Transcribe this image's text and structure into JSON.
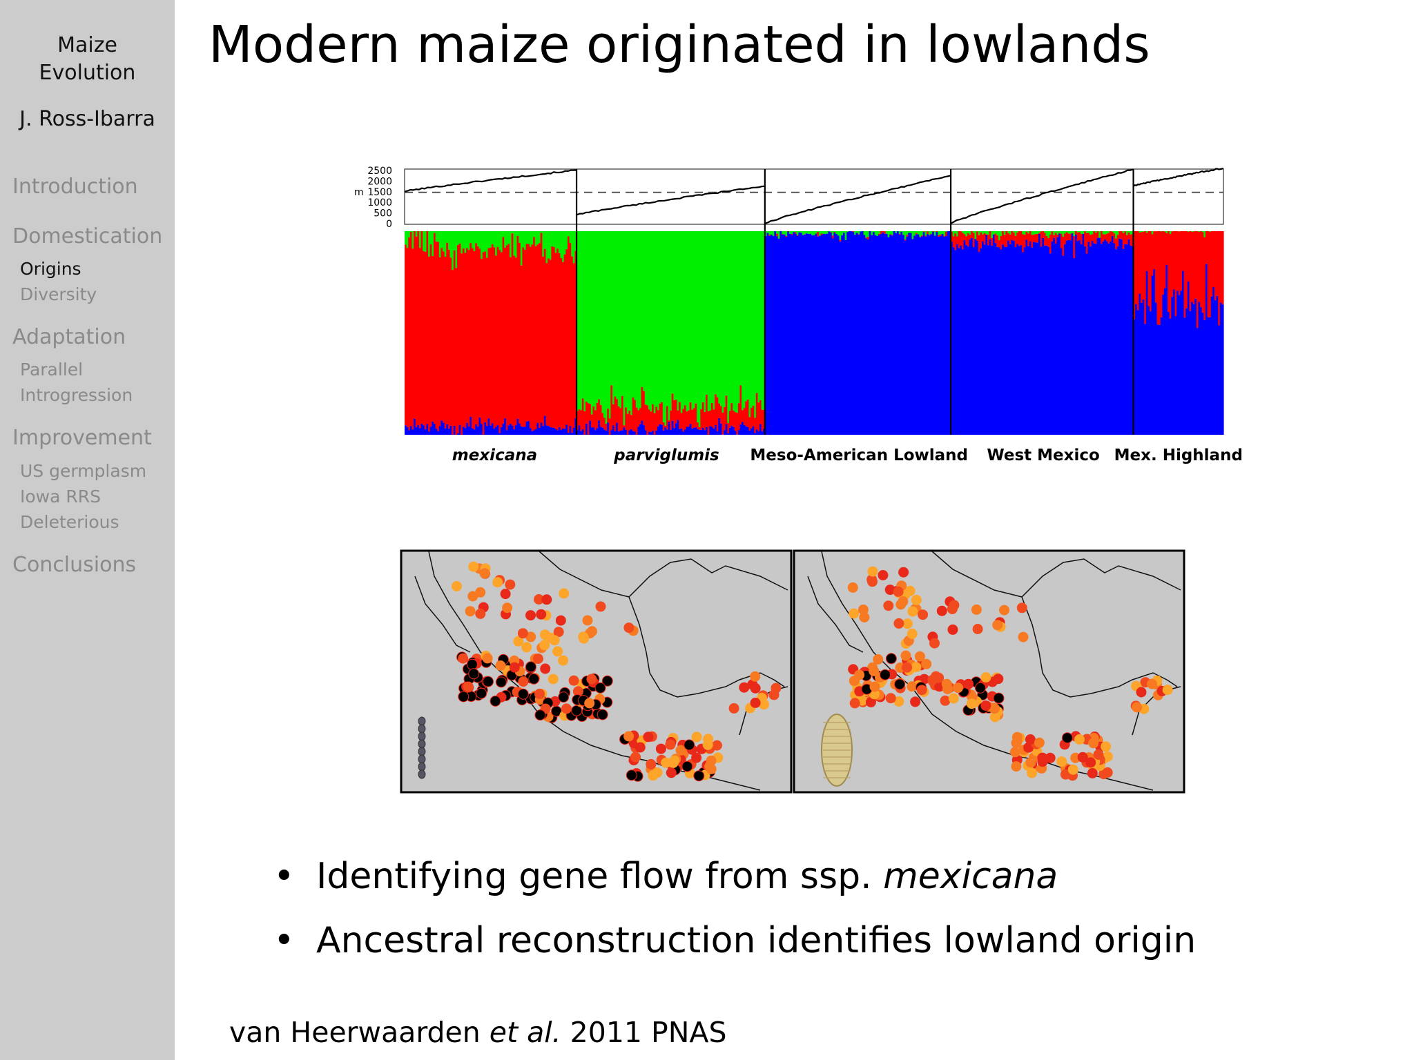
{
  "sidebar": {
    "title_line1": "Maize",
    "title_line2": "Evolution",
    "author": "J. Ross-Ibarra",
    "sections": [
      {
        "label": "Introduction"
      },
      {
        "label": "Domestication",
        "subs": [
          "Origins",
          "Diversity"
        ]
      },
      {
        "label": "Adaptation",
        "subs": [
          "Parallel",
          "Introgression"
        ]
      },
      {
        "label": "Improvement",
        "subs": [
          "US germplasm",
          "Iowa RRS",
          "Deleterious"
        ]
      },
      {
        "label": "Conclusions"
      }
    ],
    "current_subsection": "Origins"
  },
  "slide": {
    "title": "Modern maize originated in lowlands",
    "bullets": [
      {
        "text": "Identifying gene flow from ssp. ",
        "italic": "mexicana"
      },
      {
        "text": "Ancestral reconstruction identifies lowland origin"
      }
    ],
    "citation": {
      "prefix": "van Heerwaarden ",
      "italic": "et al.",
      "suffix": " 2011 PNAS"
    },
    "bullet_glyph": "•"
  },
  "chart_data": [
    {
      "type": "line",
      "ylabel": "m",
      "yticks": [
        0,
        500,
        1000,
        1500,
        2000,
        2500
      ],
      "ylim": [
        0,
        2600
      ],
      "reference_line": 1500,
      "series": [
        {
          "group": "mexicana",
          "start": 1550,
          "end": 2550
        },
        {
          "group": "parviglumis",
          "start": 450,
          "end": 1800
        },
        {
          "group": "Meso-American Lowland",
          "start": 50,
          "end": 2300
        },
        {
          "group": "West Mexico",
          "start": 50,
          "end": 2600
        },
        {
          "group": "Mex. Highland",
          "start": 1800,
          "end": 2650
        }
      ]
    },
    {
      "type": "bar",
      "stacked": true,
      "ylim": [
        0,
        1
      ],
      "categories": [
        "mexicana",
        "parviglumis",
        "Meso-American  Lowland",
        "West Mexico",
        "Mex. Highland"
      ],
      "italic_categories": [
        "mexicana",
        "parviglumis"
      ],
      "components": [
        {
          "color": "#ff0000",
          "mean_share": [
            0.88,
            0.1,
            0.0,
            0.05,
            0.35
          ]
        },
        {
          "color": "#00ee00",
          "mean_share": [
            0.08,
            0.87,
            0.01,
            0.01,
            0.0
          ]
        },
        {
          "color": "#0000ff",
          "mean_share": [
            0.04,
            0.03,
            0.99,
            0.94,
            0.65
          ]
        }
      ]
    }
  ],
  "maps": {
    "land_color": "#c8c8c8",
    "point_colors": [
      "#000000",
      "#e82818",
      "#f04a1e",
      "#f77a22",
      "#fca52a"
    ],
    "inset_left": "teosinte-ear-icon",
    "inset_right": "maize-ear-icon"
  }
}
